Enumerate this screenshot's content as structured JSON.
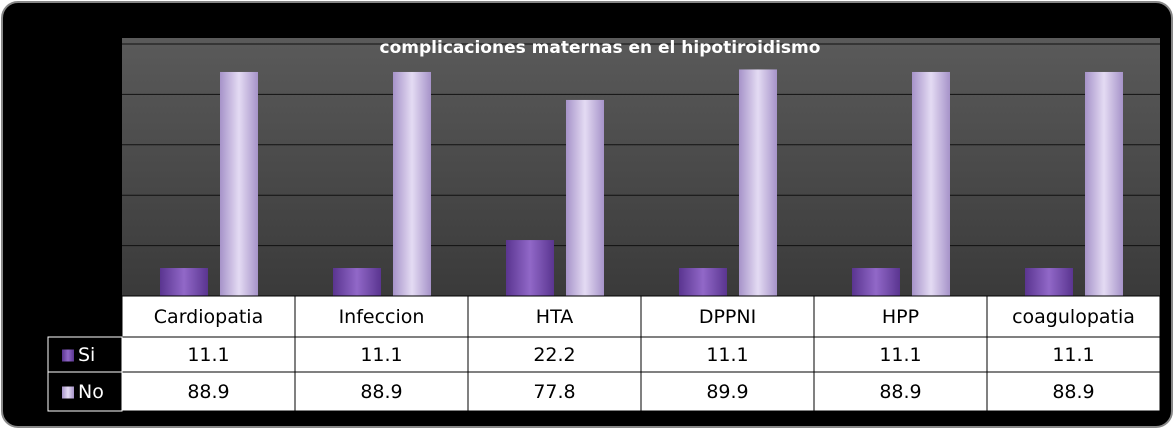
{
  "chart_data": {
    "type": "bar",
    "title": "complicaciones  maternas en el hipotiroidismo",
    "categories": [
      "Cardiopatia",
      "Infeccion",
      "HTA",
      "DPPNI",
      "HPP",
      "coagulopatia"
    ],
    "series": [
      {
        "name": "Si",
        "color": "#7b4fb0",
        "values": [
          11.1,
          11.1,
          22.2,
          11.1,
          11.1,
          11.1
        ]
      },
      {
        "name": "No",
        "color": "#c9bbe3",
        "values": [
          88.9,
          88.9,
          77.8,
          89.9,
          88.9,
          88.9
        ]
      }
    ],
    "ylim": [
      0,
      100
    ],
    "yticks": [
      0,
      20,
      40,
      60,
      80,
      100
    ],
    "grid": true
  }
}
